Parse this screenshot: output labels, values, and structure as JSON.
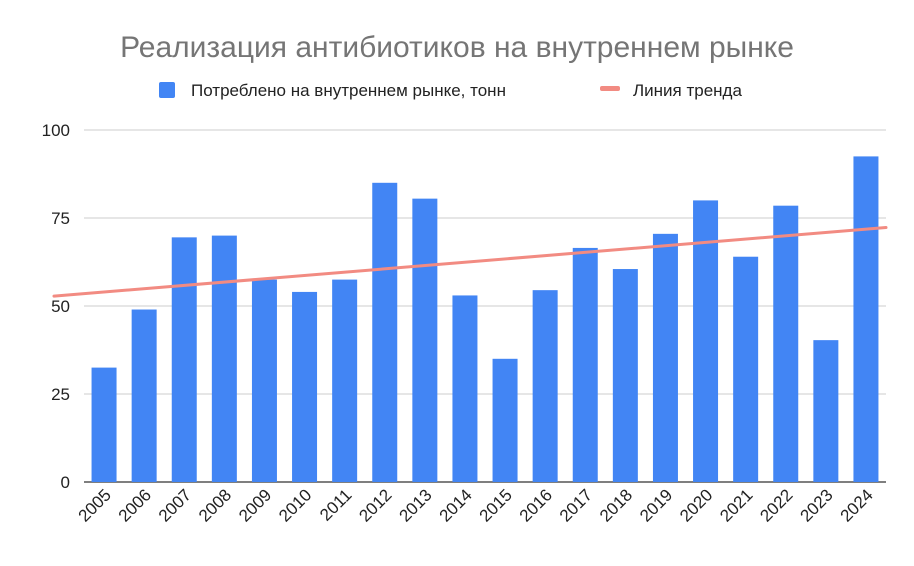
{
  "chart_data": {
    "type": "bar",
    "title": "Реализация антибиотиков на внутреннем рынке",
    "xlabel": "",
    "ylabel": "",
    "categories": [
      "2005",
      "2006",
      "2007",
      "2008",
      "2009",
      "2010",
      "2011",
      "2012",
      "2013",
      "2014",
      "2015",
      "2016",
      "2017",
      "2018",
      "2019",
      "2020",
      "2021",
      "2022",
      "2023",
      "2024"
    ],
    "series": [
      {
        "name": "Потреблено на внутреннем рынке, тонн",
        "type": "bar",
        "color": "#4285f4",
        "values": [
          32.5,
          49,
          69.5,
          70,
          57.5,
          54,
          57.5,
          85,
          80.5,
          53,
          35,
          54.5,
          66.5,
          60.5,
          70.5,
          80,
          64,
          78.5,
          40.3,
          92.5
        ]
      },
      {
        "name": "Линия тренда",
        "type": "trendline",
        "color": "#f28b82",
        "start_value": 52.8,
        "end_value": 72.3
      }
    ],
    "ylim": [
      0,
      100
    ],
    "yticks": [
      0,
      25,
      50,
      75,
      100
    ],
    "grid": true,
    "legend_position": "top"
  }
}
